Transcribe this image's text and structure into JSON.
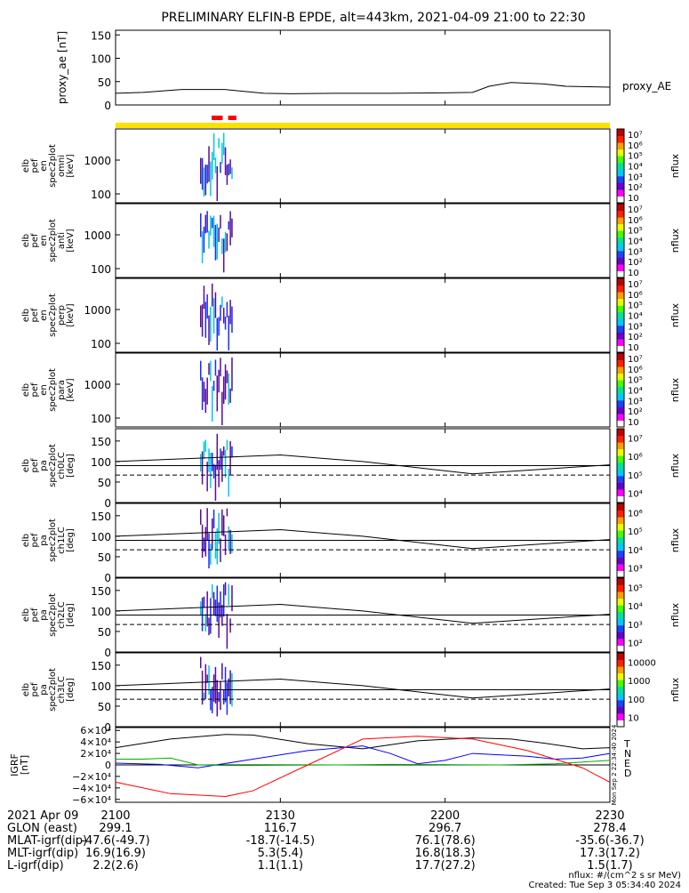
{
  "title": "PRELIMINARY ELFIN-B EPDE, alt=443km, 2021-04-09 21:00 to 22:30",
  "colors": {
    "axis": "#000000",
    "yellow_bar": "#ffe000",
    "red_marker": "#ff0000",
    "spec_purple": "#5a0a9a",
    "spec_blue": "#1a2aff",
    "spec_cyan": "#00c8e0",
    "igrf_T": "#000000",
    "igrf_N": "#0000ff",
    "igrf_E": "#00b000",
    "igrf_D": "#ff0000"
  },
  "colorbar_labels": {
    "energy": [
      "10",
      "10²",
      "10³",
      "10⁴",
      "10⁵",
      "10⁶",
      "10⁷"
    ],
    "ch0": [
      "10⁴",
      "10⁵",
      "10⁶",
      "10⁷"
    ],
    "ch1": [
      "10³",
      "10⁴",
      "10⁵",
      "10⁶"
    ],
    "ch2": [
      "10²",
      "10³",
      "10⁴",
      "10⁵"
    ],
    "ch3": [
      "10",
      "100",
      "1000",
      "10000"
    ],
    "unit": "nflux"
  },
  "chart_data": [
    {
      "type": "line",
      "panel": "proxy_ae",
      "ylabel": "proxy_ae [nT]",
      "series_label": "proxy_AE",
      "ylim": [
        0,
        160
      ],
      "yticks": [
        0,
        50,
        100,
        150
      ],
      "x": [
        0,
        5,
        12,
        20,
        27,
        32,
        40,
        50,
        60,
        65,
        68,
        72,
        78,
        82,
        90
      ],
      "values": [
        25,
        27,
        33,
        33,
        25,
        24,
        25,
        25,
        26,
        27,
        40,
        48,
        45,
        40,
        38
      ]
    },
    {
      "type": "heatmap",
      "panel": "en_omni",
      "ylabel": [
        "elb",
        "pef",
        "en",
        "spec2plot",
        "omni",
        "[keV]"
      ],
      "yscale": "log",
      "yticks": [
        "100",
        "1000"
      ]
    },
    {
      "type": "heatmap",
      "panel": "en_anti",
      "ylabel": [
        "elb",
        "pef",
        "en",
        "spec2plot",
        "anti",
        "[keV]"
      ],
      "yscale": "log",
      "yticks": [
        "100",
        "1000"
      ]
    },
    {
      "type": "heatmap",
      "panel": "en_perp",
      "ylabel": [
        "elb",
        "pef",
        "en",
        "spec2plot",
        "perp",
        "[keV]"
      ],
      "yscale": "log",
      "yticks": [
        "100",
        "1000"
      ]
    },
    {
      "type": "heatmap",
      "panel": "en_para",
      "ylabel": [
        "elb",
        "pef",
        "en",
        "spec2plot",
        "para",
        "[keV]"
      ],
      "yscale": "log",
      "yticks": [
        "100",
        "1000"
      ]
    },
    {
      "type": "heatmap",
      "panel": "pa_ch0LC",
      "ylabel": [
        "elb",
        "pef",
        "pa",
        "spec2plot",
        "ch0LC",
        "[deg]"
      ],
      "ylim": [
        0,
        180
      ],
      "yticks": [
        0,
        50,
        100,
        150
      ]
    },
    {
      "type": "heatmap",
      "panel": "pa_ch1LC",
      "ylabel": [
        "elb",
        "pef",
        "pa",
        "spec2plot",
        "ch1LC",
        "[deg]"
      ],
      "ylim": [
        0,
        180
      ],
      "yticks": [
        0,
        50,
        100,
        150
      ]
    },
    {
      "type": "heatmap",
      "panel": "pa_ch2LC",
      "ylabel": [
        "elb",
        "pef",
        "pa",
        "spec2plot",
        "ch2LC",
        "[deg]"
      ],
      "ylim": [
        0,
        180
      ],
      "yticks": [
        0,
        50,
        100,
        150
      ]
    },
    {
      "type": "heatmap",
      "panel": "pa_ch3LC",
      "ylabel": [
        "elb",
        "pef",
        "pa",
        "spec2plot",
        "ch3LC",
        "[deg]"
      ],
      "ylim": [
        0,
        180
      ],
      "yticks": [
        0,
        50,
        100,
        150
      ]
    },
    {
      "type": "line",
      "panel": "igrf",
      "ylabel": "IGRF [nT]",
      "ylim": [
        -65000,
        65000
      ],
      "yticks": [
        "6×10⁴",
        "4×10⁴",
        "2×10⁴",
        "0",
        "−2×10⁴",
        "−4×10⁴",
        "−6×10⁴"
      ],
      "series": [
        {
          "name": "T",
          "x": [
            0,
            10,
            20,
            25,
            35,
            45,
            55,
            65,
            72,
            78,
            85,
            90
          ],
          "values": [
            30000,
            45000,
            53000,
            52000,
            37000,
            28000,
            42000,
            47000,
            45000,
            38000,
            28000,
            30000
          ]
        },
        {
          "name": "N",
          "x": [
            0,
            8,
            15,
            25,
            35,
            45,
            50,
            55,
            60,
            65,
            75,
            80,
            85,
            90
          ],
          "values": [
            3000,
            1000,
            -5000,
            10000,
            25000,
            33000,
            20000,
            2000,
            8000,
            20000,
            15000,
            10000,
            12000,
            20000
          ]
        },
        {
          "name": "E",
          "x": [
            0,
            5,
            10,
            15,
            20,
            25,
            30,
            40,
            50,
            60,
            70,
            80,
            90
          ],
          "values": [
            10000,
            10000,
            12000,
            0,
            -1000,
            -1000,
            -500,
            0,
            1000,
            500,
            0,
            2000,
            8000
          ]
        },
        {
          "name": "D",
          "x": [
            0,
            10,
            20,
            25,
            35,
            45,
            55,
            65,
            75,
            85,
            90
          ],
          "values": [
            -30000,
            -50000,
            -55000,
            -45000,
            0,
            45000,
            50000,
            45000,
            25000,
            -5000,
            -30000
          ]
        }
      ]
    }
  ],
  "x_axis": {
    "ticks": [
      "2100",
      "2130",
      "2200",
      "2230"
    ]
  },
  "footer": {
    "date": "2021 Apr 09",
    "rows": [
      {
        "label": "GLON (east)",
        "values": [
          "299.1",
          "116.7",
          "296.7",
          "278.4"
        ]
      },
      {
        "label": "MLAT-igrf(dip)",
        "values": [
          "-47.6(-49.7)",
          "-18.7(-14.5)",
          "76.1(78.6)",
          "-35.6(-36.7)"
        ]
      },
      {
        "label": "MLT-igrf(dip)",
        "values": [
          "16.9(16.9)",
          "5.3(5.4)",
          "16.8(18.3)",
          "17.3(17.2)"
        ]
      },
      {
        "label": "L-igrf(dip)",
        "values": [
          "2.2(2.6)",
          "1.1(1.1)",
          "17.7(27.2)",
          "1.5(1.7)"
        ]
      }
    ],
    "units_note": "nflux: #/(cm^2 s sr MeV)",
    "created": "Created: Tue Sep  3 05:34:40 2024",
    "side_stamp": "Mon Sep  2 22:34:40 2024"
  }
}
